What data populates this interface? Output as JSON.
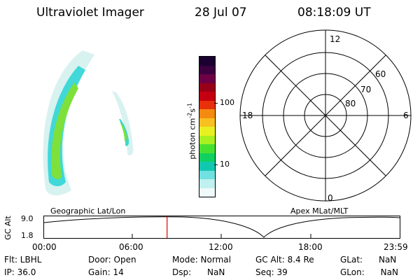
{
  "header": {
    "title": "Ultraviolet Imager",
    "date": "28 Jul 07",
    "time": "08:18:09 UT"
  },
  "colorbar": {
    "ticks": [
      "100",
      "10"
    ],
    "unit_main": "photon cm",
    "unit_sup1": "-2",
    "unit_mid": "s",
    "unit_sup2": "-1",
    "colors": [
      "#1a0030",
      "#3b0040",
      "#6d0044",
      "#980018",
      "#c40010",
      "#e8300a",
      "#f58a10",
      "#f8c020",
      "#e8f020",
      "#a8f020",
      "#48e030",
      "#10d060",
      "#10c8b0",
      "#70e0e0",
      "#c0f0f0",
      "#f0fafa"
    ]
  },
  "polar_plot": {
    "mlt_labels": {
      "top": "12",
      "left": "18",
      "right": "6",
      "bottom": "0"
    },
    "lat_labels": [
      "60",
      "70",
      "80"
    ]
  },
  "timeline": {
    "left_title": "Geographic Lat/Lon",
    "right_title": "Apex MLat/MLT",
    "yaxis_label": "GC Alt",
    "ytick_top": "9.0",
    "ytick_bottom": "1.8",
    "xticks": [
      "00:00",
      "06:00",
      "12:00",
      "18:00",
      "23:59"
    ],
    "marker_hours": 8.3
  },
  "footer": {
    "col1": [
      "Flt: LBHL",
      "IP: 36.0"
    ],
    "col2": [
      "Door: Open",
      "Gain: 14"
    ],
    "col3": [
      "Mode: Normal",
      "Dsp:      NaN"
    ],
    "col4": [
      "GC Alt: 8.4 Re",
      "Seq: 39"
    ],
    "col5": [
      "GLat:      NaN",
      "GLon:      NaN"
    ]
  }
}
